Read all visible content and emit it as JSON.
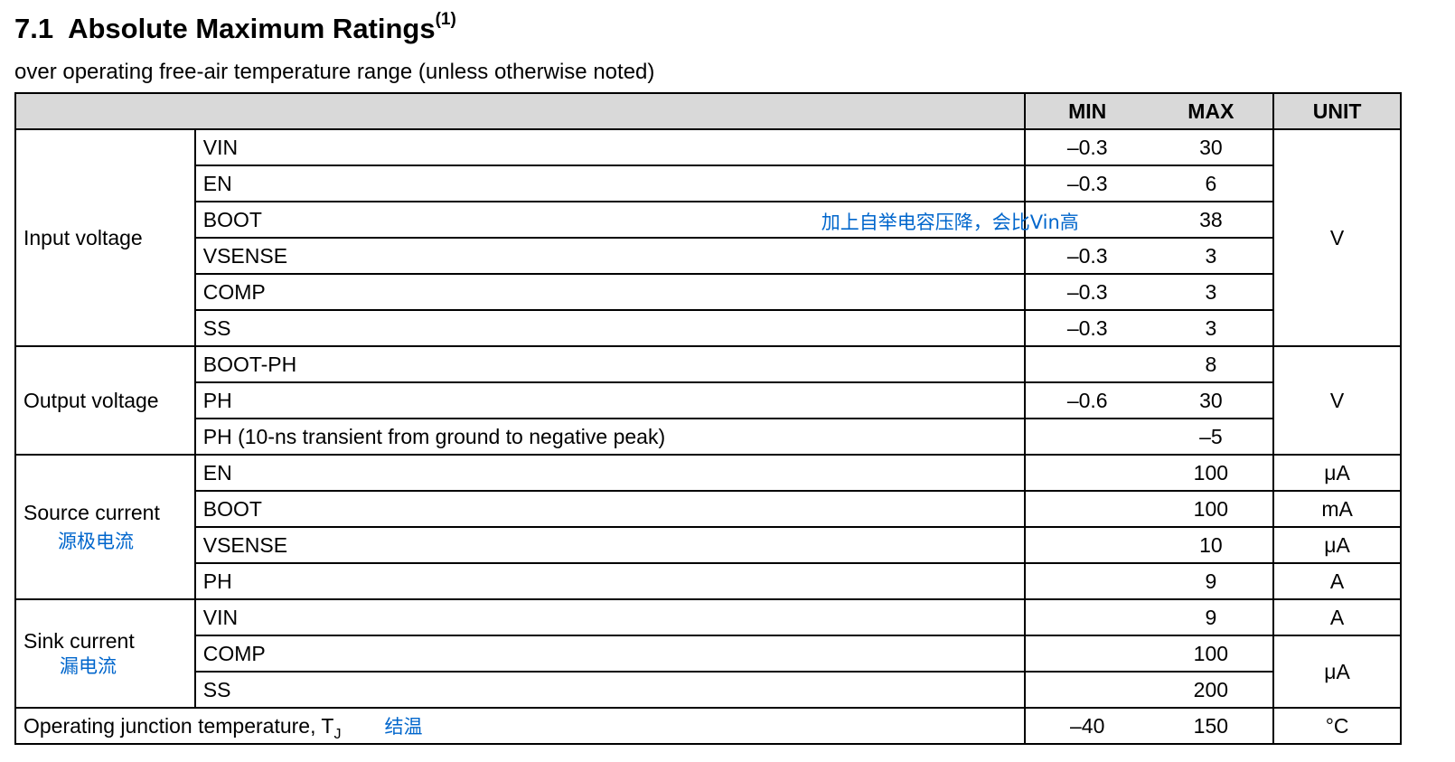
{
  "header": {
    "section_number": "7.1",
    "title": "Absolute Maximum Ratings",
    "footnote_ref": "(1)",
    "subtitle": "over operating free-air temperature range (unless otherwise noted)"
  },
  "table": {
    "columns": {
      "min": "MIN",
      "max": "MAX",
      "unit": "UNIT"
    },
    "groups": {
      "input_voltage": {
        "label": "Input voltage",
        "unit": "V",
        "rows": [
          {
            "param": "VIN",
            "min": "–0.3",
            "max": "30"
          },
          {
            "param": "EN",
            "min": "–0.3",
            "max": "6"
          },
          {
            "param": "BOOT",
            "min": "",
            "max": "38",
            "note": "加上自举电容压降，会比Vin高"
          },
          {
            "param": "VSENSE",
            "min": "–0.3",
            "max": "3"
          },
          {
            "param": "COMP",
            "min": "–0.3",
            "max": "3"
          },
          {
            "param": "SS",
            "min": "–0.3",
            "max": "3"
          }
        ]
      },
      "output_voltage": {
        "label": "Output voltage",
        "unit": "V",
        "rows": [
          {
            "param": "BOOT-PH",
            "min": "",
            "max": "8"
          },
          {
            "param": "PH",
            "min": "–0.6",
            "max": "30"
          },
          {
            "param": "PH (10-ns transient from ground to negative peak)",
            "min": "",
            "max": "–5"
          }
        ]
      },
      "source_current": {
        "label": "Source current",
        "note": "源极电流",
        "rows": [
          {
            "param": "EN",
            "min": "",
            "max": "100",
            "unit": "μA"
          },
          {
            "param": "BOOT",
            "min": "",
            "max": "100",
            "unit": "mA"
          },
          {
            "param": "VSENSE",
            "min": "",
            "max": "10",
            "unit": "μA"
          },
          {
            "param": "PH",
            "min": "",
            "max": "9",
            "unit": "A"
          }
        ]
      },
      "sink_current": {
        "label": "Sink current",
        "note": "漏电流",
        "rows": [
          {
            "param": "VIN",
            "min": "",
            "max": "9",
            "unit": "A"
          },
          {
            "param": "COMP",
            "min": "",
            "max": "100"
          },
          {
            "param": "SS",
            "min": "",
            "max": "200"
          }
        ],
        "shared_unit": "μA"
      },
      "junction_temp": {
        "label": "Operating junction temperature, T",
        "label_sub": "J",
        "note": "结温",
        "min": "–40",
        "max": "150",
        "unit": "°C"
      }
    }
  }
}
